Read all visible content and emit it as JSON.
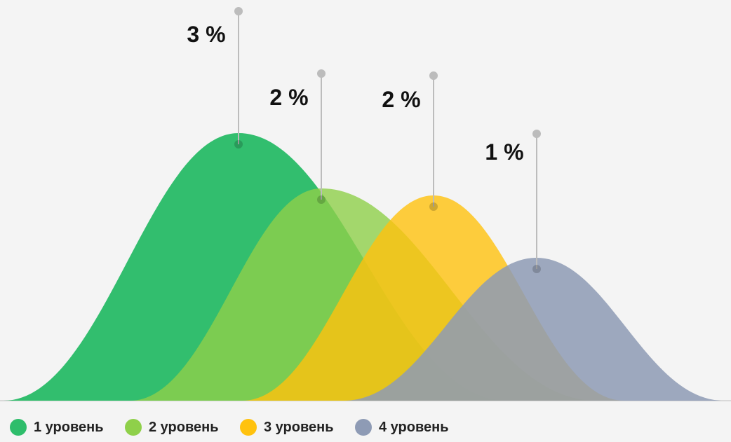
{
  "chart_data": {
    "type": "area",
    "title": "",
    "xlabel": "",
    "ylabel": "",
    "grid": false,
    "legend_position": "bottom-left",
    "series": [
      {
        "name": "1 уровень",
        "value": 3,
        "label": "3 %",
        "color": "#2ebd6b"
      },
      {
        "name": "2 уровень",
        "value": 2,
        "label": "2 %",
        "color": "#8fd04a"
      },
      {
        "name": "3 уровень",
        "value": 2,
        "label": "2 %",
        "color": "#ffc20e"
      },
      {
        "name": "4 уровень",
        "value": 1,
        "label": "1 %",
        "color": "#8e9bb5"
      }
    ]
  }
}
